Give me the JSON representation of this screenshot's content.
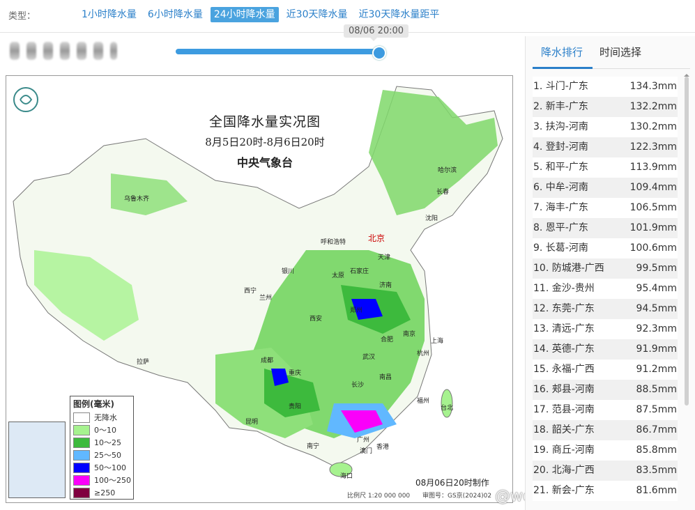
{
  "typebar": {
    "label": "类型：",
    "tabs": [
      {
        "label": "1小时降水量",
        "active": false
      },
      {
        "label": "6小时降水量",
        "active": false
      },
      {
        "label": "24小时降水量",
        "active": true
      },
      {
        "label": "近30天降水量",
        "active": false
      },
      {
        "label": "近30天降水量距平",
        "active": false
      }
    ]
  },
  "timeline": {
    "tooltip": "08/06 20:00",
    "progress": 1.0
  },
  "map": {
    "title": "全国降水量实况图",
    "period": "8月5日20时-8月6日20时",
    "source": "中央气象台",
    "capital": "北京",
    "cities": [
      "乌鲁木齐",
      "哈尔滨",
      "长春",
      "沈阳",
      "呼和浩特",
      "天津",
      "石家庄",
      "太原",
      "银川",
      "西宁",
      "兰州",
      "济南",
      "郑州",
      "西安",
      "合肥",
      "南京",
      "上海",
      "武汉",
      "杭州",
      "成都",
      "重庆",
      "长沙",
      "南昌",
      "福州",
      "台北",
      "拉萨",
      "贵阳",
      "昆明",
      "南宁",
      "广州",
      "香港",
      "澳门",
      "海口"
    ],
    "legend": {
      "title": "图例(毫米)",
      "items": [
        {
          "label": "无降水",
          "color": "#ffffff"
        },
        {
          "label": "0～10",
          "color": "#a6f28f"
        },
        {
          "label": "10～25",
          "color": "#3dba3d"
        },
        {
          "label": "25～50",
          "color": "#61b8ff"
        },
        {
          "label": "50～100",
          "color": "#0000ff"
        },
        {
          "label": "100～250",
          "color": "#fa00fa"
        },
        {
          "label": "≥250",
          "color": "#800040"
        }
      ]
    },
    "produced": "08月06日20时制作",
    "scale": "比例尺 1:20 000 000",
    "audit": "审图号：GS京(2024)02",
    "watermark": "@weatherman_信欣"
  },
  "panel": {
    "tabs": [
      {
        "label": "降水排行",
        "active": true
      },
      {
        "label": "时间选择",
        "active": false
      }
    ],
    "ranking": [
      {
        "name": "1. 斗门-广东",
        "value": "134.3mm"
      },
      {
        "name": "2. 新丰-广东",
        "value": "132.2mm"
      },
      {
        "name": "3. 扶沟-河南",
        "value": "130.2mm"
      },
      {
        "name": "4. 登封-河南",
        "value": "122.3mm"
      },
      {
        "name": "5. 和平-广东",
        "value": "113.9mm"
      },
      {
        "name": "6. 中牟-河南",
        "value": "109.4mm"
      },
      {
        "name": "7. 海丰-广东",
        "value": "106.5mm"
      },
      {
        "name": "8. 恩平-广东",
        "value": "101.9mm"
      },
      {
        "name": "9. 长葛-河南",
        "value": "100.6mm"
      },
      {
        "name": "10. 防城港-广西",
        "value": "99.5mm"
      },
      {
        "name": "11. 金沙-贵州",
        "value": "95.4mm"
      },
      {
        "name": "12. 东莞-广东",
        "value": "94.5mm"
      },
      {
        "name": "13. 清远-广东",
        "value": "92.3mm"
      },
      {
        "name": "14. 英德-广东",
        "value": "91.9mm"
      },
      {
        "name": "15. 永福-广西",
        "value": "91.2mm"
      },
      {
        "name": "16. 郏县-河南",
        "value": "88.5mm"
      },
      {
        "name": "17. 范县-河南",
        "value": "87.5mm"
      },
      {
        "name": "18. 韶关-广东",
        "value": "86.7mm"
      },
      {
        "name": "19. 商丘-河南",
        "value": "85.8mm"
      },
      {
        "name": "20. 北海-广西",
        "value": "83.5mm"
      },
      {
        "name": "21. 新会-广东",
        "value": "81.6mm"
      }
    ]
  }
}
